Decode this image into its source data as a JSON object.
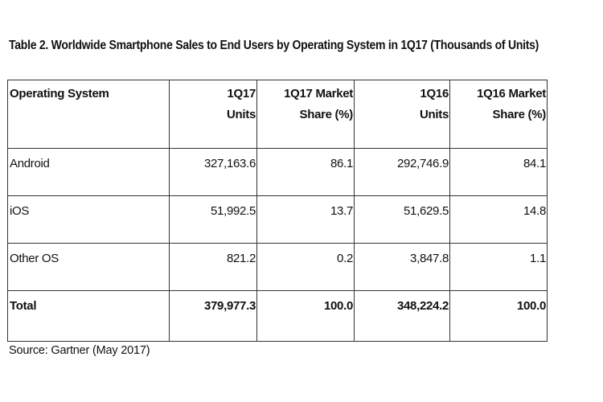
{
  "title": "Table 2. Worldwide Smartphone Sales to End Users by Operating System in 1Q17 (Thousands of Units)",
  "table": {
    "headers": [
      {
        "line1": "Operating System",
        "line2": ""
      },
      {
        "line1": "1Q17",
        "line2": "Units"
      },
      {
        "line1": "1Q17 Market",
        "line2": "Share (%)"
      },
      {
        "line1": "1Q16",
        "line2": "Units"
      },
      {
        "line1": "1Q16 Market",
        "line2": "Share (%)"
      }
    ],
    "rows": [
      {
        "os": "Android",
        "q17_units": "327,163.6",
        "q17_share": "86.1",
        "q16_units": "292,746.9",
        "q16_share": "84.1"
      },
      {
        "os": "iOS",
        "q17_units": "51,992.5",
        "q17_share": "13.7",
        "q16_units": "51,629.5",
        "q16_share": "14.8"
      },
      {
        "os": "Other OS",
        "q17_units": "821.2",
        "q17_share": "0.2",
        "q16_units": "3,847.8",
        "q16_share": "1.1"
      }
    ],
    "total": {
      "os": "Total",
      "q17_units": "379,977.3",
      "q17_share": "100.0",
      "q16_units": "348,224.2",
      "q16_share": "100.0"
    }
  },
  "source": "Source: Gartner (May 2017)"
}
